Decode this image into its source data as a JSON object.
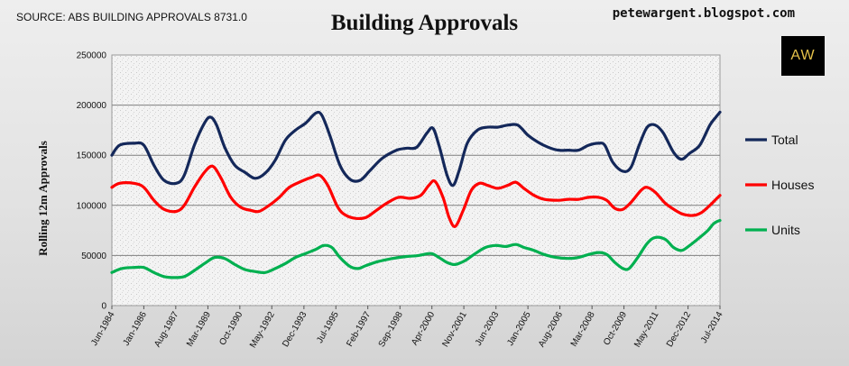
{
  "header": {
    "source": "SOURCE: ABS BUILDING APPROVALS 8731.0",
    "title": "Building Approvals",
    "blog": "petewargent.blogspot.com",
    "logo": "AW"
  },
  "chart_data": {
    "type": "line",
    "title": "Building Approvals",
    "xlabel": "",
    "ylabel": "Rolling 12m  Approvals",
    "ylim": [
      0,
      250000
    ],
    "yticks": [
      0,
      50000,
      100000,
      150000,
      200000,
      250000
    ],
    "ytick_labels": [
      "0",
      "50000",
      "100000",
      "150000",
      "200000",
      "250000"
    ],
    "xlim": [
      1984.42,
      2014.5
    ],
    "x_ticks": [
      {
        "label": "Jun-1984",
        "x": 1984.42
      },
      {
        "label": "Jan-1986",
        "x": 1986.0
      },
      {
        "label": "Aug-1987",
        "x": 1987.58
      },
      {
        "label": "Mar-1989",
        "x": 1989.17
      },
      {
        "label": "Oct-1990",
        "x": 1990.75
      },
      {
        "label": "May-1992",
        "x": 1992.33
      },
      {
        "label": "Dec-1993",
        "x": 1993.92
      },
      {
        "label": "Jul-1995",
        "x": 1995.5
      },
      {
        "label": "Feb-1997",
        "x": 1997.08
      },
      {
        "label": "Sep-1998",
        "x": 1998.67
      },
      {
        "label": "Apr-2000",
        "x": 2000.25
      },
      {
        "label": "Nov-2001",
        "x": 2001.83
      },
      {
        "label": "Jun-2003",
        "x": 2003.42
      },
      {
        "label": "Jan-2005",
        "x": 2005.0
      },
      {
        "label": "Aug-2006",
        "x": 2006.58
      },
      {
        "label": "Mar-2008",
        "x": 2008.17
      },
      {
        "label": "Oct-2009",
        "x": 2009.75
      },
      {
        "label": "May-2011",
        "x": 2011.33
      },
      {
        "label": "Dec-2012",
        "x": 2012.92
      },
      {
        "label": "Jul-2014",
        "x": 2014.5
      }
    ],
    "grid": true,
    "legend_position": "right",
    "series": [
      {
        "name": "Total",
        "color": "#14285a",
        "points": [
          [
            1984.42,
            150000
          ],
          [
            1984.8,
            160000
          ],
          [
            1985.5,
            162000
          ],
          [
            1986.0,
            160000
          ],
          [
            1986.5,
            140000
          ],
          [
            1987.0,
            125000
          ],
          [
            1987.6,
            122000
          ],
          [
            1988.0,
            130000
          ],
          [
            1988.5,
            160000
          ],
          [
            1989.0,
            182000
          ],
          [
            1989.3,
            188000
          ],
          [
            1989.6,
            180000
          ],
          [
            1990.0,
            158000
          ],
          [
            1990.5,
            140000
          ],
          [
            1991.0,
            133000
          ],
          [
            1991.5,
            127000
          ],
          [
            1992.0,
            132000
          ],
          [
            1992.5,
            145000
          ],
          [
            1993.0,
            165000
          ],
          [
            1993.5,
            175000
          ],
          [
            1994.0,
            182000
          ],
          [
            1994.5,
            192000
          ],
          [
            1994.8,
            190000
          ],
          [
            1995.2,
            170000
          ],
          [
            1995.7,
            140000
          ],
          [
            1996.2,
            126000
          ],
          [
            1996.7,
            125000
          ],
          [
            1997.2,
            135000
          ],
          [
            1997.8,
            147000
          ],
          [
            1998.5,
            155000
          ],
          [
            1999.0,
            157000
          ],
          [
            1999.5,
            158000
          ],
          [
            2000.0,
            172000
          ],
          [
            2000.3,
            177000
          ],
          [
            2000.6,
            160000
          ],
          [
            2001.0,
            130000
          ],
          [
            2001.3,
            120000
          ],
          [
            2001.6,
            135000
          ],
          [
            2002.0,
            162000
          ],
          [
            2002.5,
            175000
          ],
          [
            2003.0,
            178000
          ],
          [
            2003.5,
            178000
          ],
          [
            2004.0,
            180000
          ],
          [
            2004.5,
            180000
          ],
          [
            2005.0,
            170000
          ],
          [
            2005.5,
            163000
          ],
          [
            2006.0,
            158000
          ],
          [
            2006.5,
            155000
          ],
          [
            2007.0,
            155000
          ],
          [
            2007.5,
            155000
          ],
          [
            2008.0,
            160000
          ],
          [
            2008.5,
            162000
          ],
          [
            2008.8,
            160000
          ],
          [
            2009.2,
            143000
          ],
          [
            2009.7,
            134000
          ],
          [
            2010.1,
            138000
          ],
          [
            2010.5,
            160000
          ],
          [
            2010.9,
            178000
          ],
          [
            2011.3,
            180000
          ],
          [
            2011.7,
            172000
          ],
          [
            2012.2,
            153000
          ],
          [
            2012.6,
            146000
          ],
          [
            2013.0,
            152000
          ],
          [
            2013.5,
            160000
          ],
          [
            2014.0,
            180000
          ],
          [
            2014.3,
            188000
          ],
          [
            2014.5,
            193000
          ]
        ]
      },
      {
        "name": "Houses",
        "color": "#ff0000",
        "points": [
          [
            1984.42,
            118000
          ],
          [
            1984.8,
            122000
          ],
          [
            1985.5,
            122000
          ],
          [
            1986.0,
            118000
          ],
          [
            1986.5,
            105000
          ],
          [
            1987.0,
            96000
          ],
          [
            1987.6,
            94000
          ],
          [
            1988.0,
            100000
          ],
          [
            1988.5,
            118000
          ],
          [
            1989.0,
            133000
          ],
          [
            1989.4,
            139000
          ],
          [
            1989.8,
            128000
          ],
          [
            1990.3,
            108000
          ],
          [
            1990.8,
            98000
          ],
          [
            1991.3,
            95000
          ],
          [
            1991.7,
            94000
          ],
          [
            1992.2,
            100000
          ],
          [
            1992.7,
            108000
          ],
          [
            1993.2,
            118000
          ],
          [
            1993.8,
            124000
          ],
          [
            1994.3,
            128000
          ],
          [
            1994.7,
            130000
          ],
          [
            1995.1,
            120000
          ],
          [
            1995.6,
            98000
          ],
          [
            1996.0,
            90000
          ],
          [
            1996.5,
            87000
          ],
          [
            1997.0,
            88000
          ],
          [
            1997.5,
            95000
          ],
          [
            1998.0,
            102000
          ],
          [
            1998.6,
            108000
          ],
          [
            1999.2,
            107000
          ],
          [
            1999.7,
            110000
          ],
          [
            2000.1,
            120000
          ],
          [
            2000.4,
            124000
          ],
          [
            2000.8,
            108000
          ],
          [
            2001.1,
            88000
          ],
          [
            2001.4,
            79000
          ],
          [
            2001.8,
            95000
          ],
          [
            2002.2,
            115000
          ],
          [
            2002.6,
            122000
          ],
          [
            2003.0,
            120000
          ],
          [
            2003.5,
            117000
          ],
          [
            2004.0,
            120000
          ],
          [
            2004.4,
            123000
          ],
          [
            2004.8,
            117000
          ],
          [
            2005.3,
            110000
          ],
          [
            2005.8,
            106000
          ],
          [
            2006.5,
            105000
          ],
          [
            2007.0,
            106000
          ],
          [
            2007.5,
            106000
          ],
          [
            2008.0,
            108000
          ],
          [
            2008.5,
            108000
          ],
          [
            2008.9,
            105000
          ],
          [
            2009.3,
            97000
          ],
          [
            2009.7,
            96000
          ],
          [
            2010.1,
            103000
          ],
          [
            2010.6,
            115000
          ],
          [
            2010.9,
            118000
          ],
          [
            2011.3,
            113000
          ],
          [
            2011.8,
            102000
          ],
          [
            2012.3,
            95000
          ],
          [
            2012.7,
            91000
          ],
          [
            2013.2,
            90000
          ],
          [
            2013.6,
            93000
          ],
          [
            2014.0,
            100000
          ],
          [
            2014.3,
            106000
          ],
          [
            2014.5,
            110000
          ]
        ]
      },
      {
        "name": "Units",
        "color": "#00b050",
        "points": [
          [
            1984.42,
            33000
          ],
          [
            1984.9,
            37000
          ],
          [
            1985.5,
            38000
          ],
          [
            1986.0,
            38000
          ],
          [
            1986.5,
            33000
          ],
          [
            1987.0,
            29000
          ],
          [
            1987.5,
            28000
          ],
          [
            1988.0,
            29000
          ],
          [
            1988.5,
            35000
          ],
          [
            1989.0,
            42000
          ],
          [
            1989.5,
            48000
          ],
          [
            1990.0,
            47000
          ],
          [
            1990.5,
            41000
          ],
          [
            1991.0,
            36000
          ],
          [
            1991.5,
            34000
          ],
          [
            1992.0,
            33000
          ],
          [
            1992.5,
            37000
          ],
          [
            1993.0,
            42000
          ],
          [
            1993.5,
            48000
          ],
          [
            1994.0,
            52000
          ],
          [
            1994.5,
            56000
          ],
          [
            1994.9,
            60000
          ],
          [
            1995.3,
            58000
          ],
          [
            1995.7,
            48000
          ],
          [
            1996.2,
            39000
          ],
          [
            1996.6,
            37000
          ],
          [
            1997.0,
            40000
          ],
          [
            1997.6,
            44000
          ],
          [
            1998.3,
            47000
          ],
          [
            1999.0,
            49000
          ],
          [
            1999.6,
            50000
          ],
          [
            2000.2,
            52000
          ],
          [
            2000.6,
            48000
          ],
          [
            2001.0,
            43000
          ],
          [
            2001.4,
            41000
          ],
          [
            2001.9,
            45000
          ],
          [
            2002.4,
            52000
          ],
          [
            2002.9,
            58000
          ],
          [
            2003.4,
            60000
          ],
          [
            2003.9,
            59000
          ],
          [
            2004.4,
            61000
          ],
          [
            2004.8,
            58000
          ],
          [
            2005.3,
            55000
          ],
          [
            2005.8,
            51000
          ],
          [
            2006.4,
            48000
          ],
          [
            2007.0,
            47000
          ],
          [
            2007.5,
            48000
          ],
          [
            2008.0,
            51000
          ],
          [
            2008.5,
            53000
          ],
          [
            2008.9,
            51000
          ],
          [
            2009.3,
            43000
          ],
          [
            2009.7,
            37000
          ],
          [
            2010.0,
            37000
          ],
          [
            2010.4,
            47000
          ],
          [
            2010.9,
            62000
          ],
          [
            2011.3,
            68000
          ],
          [
            2011.8,
            66000
          ],
          [
            2012.2,
            58000
          ],
          [
            2012.6,
            55000
          ],
          [
            2013.0,
            60000
          ],
          [
            2013.5,
            68000
          ],
          [
            2013.9,
            75000
          ],
          [
            2014.2,
            82000
          ],
          [
            2014.5,
            85000
          ]
        ]
      }
    ]
  }
}
